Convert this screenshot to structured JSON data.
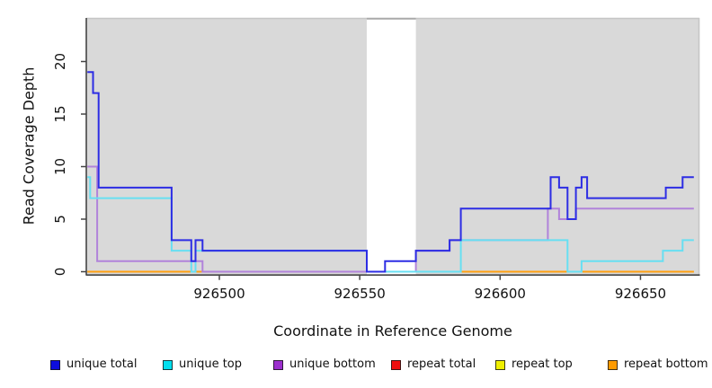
{
  "chart_data": {
    "type": "line",
    "subtype": "step",
    "title": "",
    "xlabel": "Coordinate in Reference Genome",
    "ylabel": "Read Coverage Depth",
    "xlim": [
      926452.5,
      926671
    ],
    "ylim": [
      0,
      24.2
    ],
    "x_ticks": [
      926500,
      926550,
      926600,
      926650
    ],
    "y_ticks": [
      0,
      5,
      10,
      15,
      20
    ],
    "grid": false,
    "plot_bg": "#d9d9d9",
    "box_color": "#c6c6c6",
    "axis_color": "#444444",
    "masked_region": {
      "from": 926552.5,
      "to": 926570,
      "color": "#ffffff",
      "edge_color": "#a9a9a9"
    },
    "legend_position": "bottom",
    "draw_order": [
      "repeat total",
      "repeat top",
      "repeat bottom",
      "unique bottom",
      "unique top",
      "unique total"
    ],
    "series": [
      {
        "name": "unique total",
        "color": "#2d2de4",
        "x_end": 926669,
        "points": [
          [
            926453,
            19
          ],
          [
            926455,
            17
          ],
          [
            926457,
            8
          ],
          [
            926483,
            3
          ],
          [
            926490,
            1
          ],
          [
            926491.5,
            3
          ],
          [
            926494,
            2
          ],
          [
            926552.5,
            0
          ],
          [
            926559,
            1
          ],
          [
            926570,
            2
          ],
          [
            926582,
            3
          ],
          [
            926586,
            6
          ],
          [
            926618,
            9
          ],
          [
            926621,
            8
          ],
          [
            926624,
            5
          ],
          [
            926627,
            8
          ],
          [
            926629,
            9
          ],
          [
            926631,
            7
          ],
          [
            926659,
            8
          ],
          [
            926665,
            9
          ]
        ]
      },
      {
        "name": "unique top",
        "color": "#67dff2",
        "x_end": 926669,
        "points": [
          [
            926453,
            9
          ],
          [
            926454,
            7
          ],
          [
            926483,
            2
          ],
          [
            926490,
            0
          ],
          [
            926491.5,
            2
          ],
          [
            926552.5,
            0
          ],
          [
            926586,
            3
          ],
          [
            926624,
            0
          ],
          [
            926629,
            1
          ],
          [
            926658,
            2
          ],
          [
            926665,
            3
          ]
        ]
      },
      {
        "name": "unique bottom",
        "color": "#b183da",
        "x_end": 926669,
        "points": [
          [
            926453,
            10
          ],
          [
            926456.5,
            1
          ],
          [
            926494,
            0
          ],
          [
            926570,
            2
          ],
          [
            926582,
            3
          ],
          [
            926617,
            6
          ],
          [
            926621,
            5
          ],
          [
            926627,
            6
          ]
        ]
      },
      {
        "name": "repeat total",
        "color": "#e84b4b",
        "x_end": 926669,
        "points": [
          [
            926453,
            0
          ]
        ]
      },
      {
        "name": "repeat top",
        "color": "#f0f04a",
        "x_end": 926669,
        "points": [
          [
            926453,
            0
          ]
        ]
      },
      {
        "name": "repeat bottom",
        "color": "#ffa012",
        "x_end": 926669,
        "points": [
          [
            926453,
            0
          ]
        ]
      }
    ]
  },
  "legend": {
    "items": [
      {
        "label": "unique total",
        "color": "#0d0ddd"
      },
      {
        "label": "unique top",
        "color": "#00dfee"
      },
      {
        "label": "unique bottom",
        "color": "#9c2fce"
      },
      {
        "label": "repeat total",
        "color": "#ee0d0d"
      },
      {
        "label": "repeat top",
        "color": "#f0f000"
      },
      {
        "label": "repeat bottom",
        "color": "#ff9b00"
      }
    ]
  }
}
